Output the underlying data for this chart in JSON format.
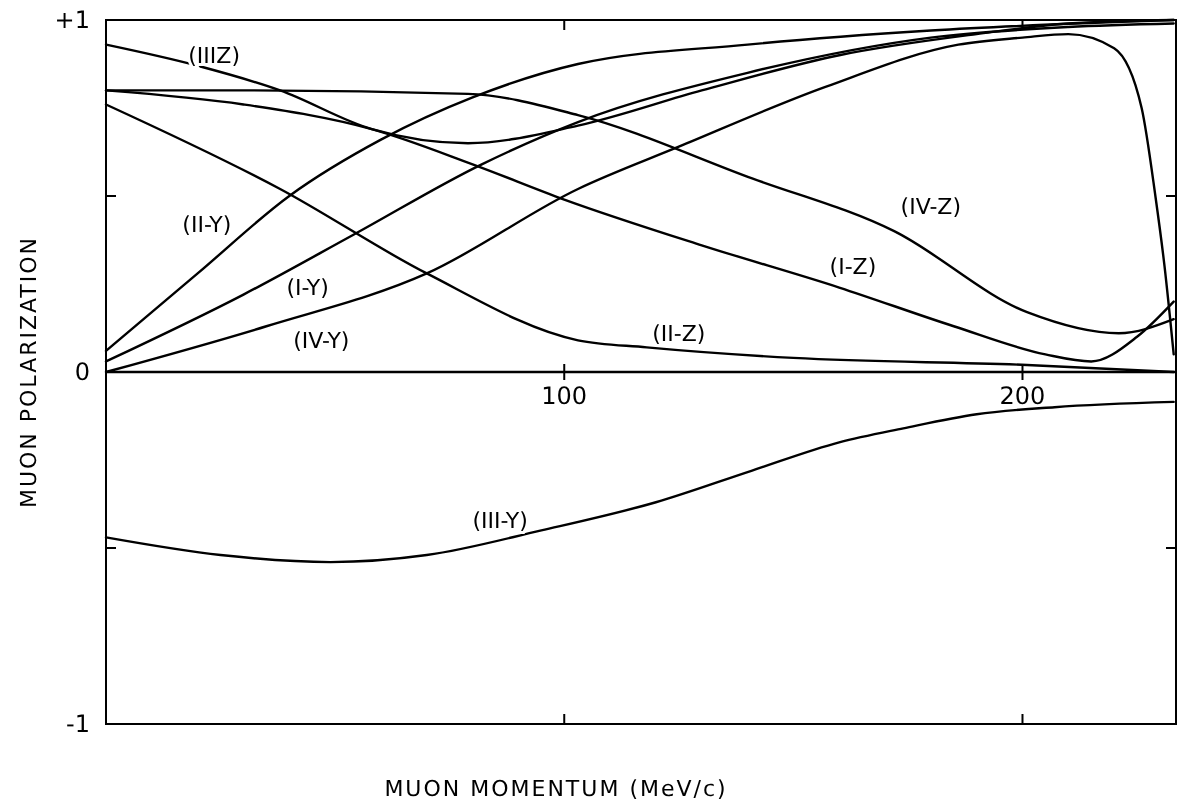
{
  "chart_data": {
    "type": "line",
    "xlabel": "MUON MOMENTUM   (MeV/c)",
    "ylabel": "MUON POLARIZATION",
    "xlim": [
      0,
      233.5
    ],
    "ylim": [
      -1,
      1
    ],
    "xticks": [
      100,
      200
    ],
    "yticks": [
      {
        "value": -1,
        "label": "-1"
      },
      {
        "value": -0.5,
        "label": null
      },
      0,
      {
        "value": 0.5,
        "label": null
      },
      {
        "value": 1,
        "label": "+1"
      }
    ],
    "marker": "none",
    "line_style": "solid",
    "series": [
      {
        "name": "(I-Z)",
        "color": "#000000",
        "x": [
          0,
          30,
          58,
          80,
          100,
          130,
          160,
          185,
          205,
          215,
          225,
          233
        ],
        "values": [
          0.8,
          0.76,
          0.69,
          0.59,
          0.49,
          0.36,
          0.24,
          0.13,
          0.05,
          0.03,
          0.1,
          0.2
        ]
      },
      {
        "name": "(IV-Z)",
        "color": "#000000",
        "x": [
          0,
          30,
          79,
          103,
          141,
          172,
          201,
          221,
          233
        ],
        "values": [
          0.8,
          0.8,
          0.79,
          0.73,
          0.55,
          0.4,
          0.17,
          0.11,
          0.15
        ]
      },
      {
        "name": "(IIIZ)",
        "color": "#000000",
        "x": [
          0,
          20,
          38,
          58,
          79,
          103,
          130,
          160,
          190,
          210,
          233
        ],
        "values": [
          0.93,
          0.87,
          0.8,
          0.69,
          0.65,
          0.7,
          0.8,
          0.9,
          0.96,
          0.99,
          1
        ]
      },
      {
        "name": "(II-Z)",
        "color": "#000000",
        "x": [
          0,
          38,
          70,
          103,
          118,
          150,
          201,
          233
        ],
        "values": [
          0.76,
          0.52,
          0.28,
          0.09,
          0.07,
          0.04,
          0.02,
          0
        ]
      },
      {
        "name": "(II-Y)",
        "color": "#000000",
        "x": [
          0,
          20,
          40,
          60,
          80,
          103,
          140,
          180,
          233
        ],
        "values": [
          0.06,
          0.28,
          0.5,
          0.66,
          0.78,
          0.875,
          0.93,
          0.97,
          1
        ]
      },
      {
        "name": "(I-Y)",
        "color": "#000000",
        "x": [
          0,
          30,
          54,
          82,
          103,
          140,
          180,
          210,
          233
        ],
        "values": [
          0.03,
          0.22,
          0.39,
          0.59,
          0.71,
          0.85,
          0.95,
          0.98,
          0.99
        ]
      },
      {
        "name": "(IV-Y)",
        "color": "#000000",
        "x": [
          0,
          35,
          70,
          103,
          125,
          157,
          186,
          200,
          210,
          220,
          226,
          229,
          231,
          233
        ],
        "values": [
          0,
          0.13,
          0.28,
          0.52,
          0.64,
          0.81,
          0.93,
          0.95,
          0.96,
          0.92,
          0.75,
          0.5,
          0.3,
          0.05
        ]
      },
      {
        "name": "(III-Y)",
        "color": "#000000",
        "x": [
          0,
          25,
          49,
          70,
          95,
          120,
          141,
          160,
          174,
          190,
          207,
          233
        ],
        "values": [
          -0.47,
          -0.52,
          -0.54,
          -0.52,
          -0.45,
          -0.37,
          -0.28,
          -0.2,
          -0.16,
          -0.12,
          -0.1,
          -0.085
        ]
      }
    ]
  }
}
